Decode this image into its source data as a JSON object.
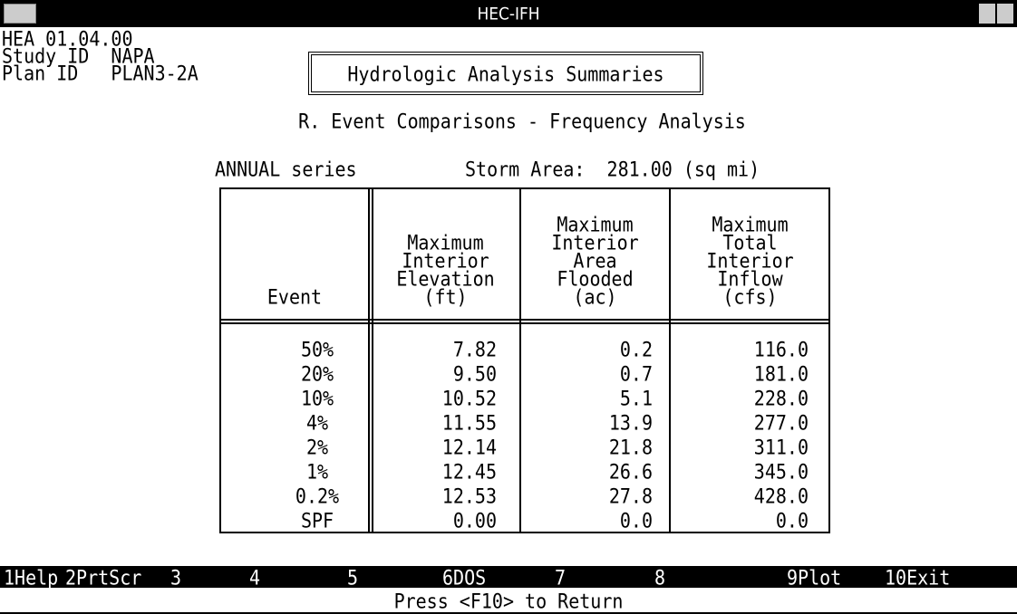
{
  "window": {
    "title": "HEC-IFH"
  },
  "info": {
    "lines": [
      "HEA 01.04.00",
      "Study ID  NAPA",
      "Plan ID   PLAN3-2A"
    ]
  },
  "header": {
    "title": "Hydrologic Analysis Summaries",
    "subtitle": "R. Event Comparisons - Frequency Analysis",
    "series": "ANNUAL series",
    "storm_area": "Storm Area:  281.00 (sq mi)"
  },
  "table": {
    "columns": [
      [
        "Event"
      ],
      [
        "Maximum",
        "Interior",
        "Elevation",
        "(ft)"
      ],
      [
        "Maximum",
        "Interior",
        "Area",
        "Flooded",
        "(ac)"
      ],
      [
        "Maximum",
        "Total",
        "Interior",
        "Inflow",
        "(cfs)"
      ]
    ],
    "rows": [
      [
        "50%",
        "7.82",
        "0.2",
        "116.0"
      ],
      [
        "20%",
        "9.50",
        "0.7",
        "181.0"
      ],
      [
        "10%",
        "10.52",
        "5.1",
        "228.0"
      ],
      [
        "4%",
        "11.55",
        "13.9",
        "277.0"
      ],
      [
        "2%",
        "12.14",
        "21.8",
        "311.0"
      ],
      [
        "1%",
        "12.45",
        "26.6",
        "345.0"
      ],
      [
        "0.2%",
        "12.53",
        "27.8",
        "428.0"
      ],
      [
        "SPF",
        "0.00",
        "0.0",
        "0.0"
      ]
    ]
  },
  "function_keys": [
    "1Help",
    "2PrtScr",
    "3",
    "4",
    "5",
    "6DOS",
    "7",
    "8",
    "9Plot",
    "10Exit"
  ],
  "status": "Press <F10> to Return"
}
